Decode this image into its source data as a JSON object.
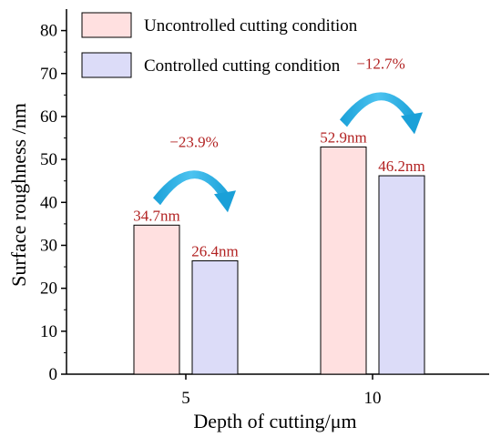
{
  "chart_data": {
    "type": "bar",
    "xlabel": "Depth of cutting/μm",
    "ylabel": "Surface roughness /nm",
    "categories": [
      "5",
      "10"
    ],
    "ylim": [
      0,
      85
    ],
    "yticks": [
      0,
      10,
      20,
      30,
      40,
      50,
      60,
      70,
      80
    ],
    "series": [
      {
        "name": "Uncontrolled cutting condition",
        "values": [
          34.7,
          52.9
        ],
        "labels": [
          "34.7nm",
          "52.9nm"
        ],
        "color": "#ffe0e0"
      },
      {
        "name": "Controlled cutting condition",
        "values": [
          26.4,
          46.2
        ],
        "labels": [
          "26.4nm",
          "46.2nm"
        ],
        "color": "#dcdcf8"
      }
    ],
    "annotations": [
      {
        "category": "5",
        "text": "−23.9%"
      },
      {
        "category": "10",
        "text": "−12.7%"
      }
    ],
    "legend_position": "top-left",
    "grid": false,
    "colors": {
      "label_text": "#b22222",
      "arrow": "#29aee0"
    }
  }
}
